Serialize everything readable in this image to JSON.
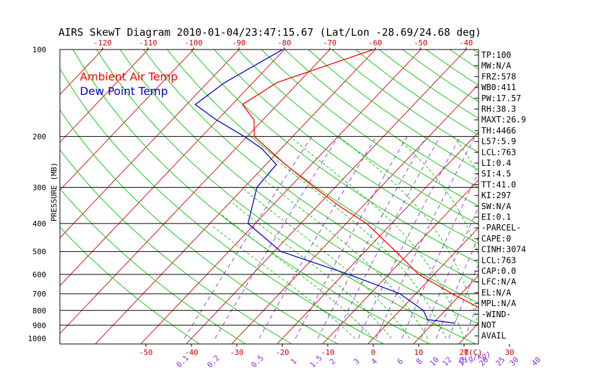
{
  "title": "AIRS SkewT Diagram 2010-01-04/23:47:15.67 (Lat/Lon -28.69/24.68 deg)",
  "colors": {
    "temp": "#ff0000",
    "dewpoint": "#0000c8",
    "isotherm": "#cc0000",
    "dry_adiabat": "#00c000",
    "moist_adiabat": "#00c000",
    "mixing_ratio": "#8a2be2",
    "isobar": "#000000",
    "tick_red": "#cc0000",
    "tick_purple": "#8a2be2"
  },
  "chart_data": {
    "type": "line",
    "title": "AIRS SkewT Diagram 2010-01-04/23:47:15.67 (Lat/Lon -28.69/24.68 deg)",
    "ylabel": "PRESSURE (MB)",
    "y_scale": "log",
    "ylim": [
      1000,
      100
    ],
    "y_ticks": [
      100,
      200,
      300,
      400,
      500,
      600,
      700,
      800,
      900,
      1000
    ],
    "y_tick_labels": [
      "100",
      "200",
      "300",
      "400",
      "500",
      "600",
      "700",
      "800",
      "900",
      "1000"
    ],
    "top_temp_ticks": [
      -120,
      -110,
      -100,
      -90,
      -80,
      -70,
      -60,
      -50,
      -40
    ],
    "bottom_temp_ticks": [
      -50,
      -40,
      -30,
      -20,
      -10,
      0,
      10,
      20,
      30
    ],
    "bottom_temp_unit": "T(C)",
    "mixing_ratio_ticks": [
      "0.1",
      "0.2",
      "0.5",
      "1",
      "1.5",
      "2",
      "3",
      "4",
      "6",
      "8",
      "10",
      "12",
      "15",
      "20",
      "25",
      "30",
      "40"
    ],
    "mixing_ratio_unit": "Q(g/kg)",
    "legend": [
      "Ambient Air Temp",
      "Dew Point Temp"
    ],
    "legend_position": "top-left",
    "series": [
      {
        "name": "Ambient Air Temp",
        "p": [
          885,
          870,
          800,
          700,
          600,
          500,
          400,
          350,
          300,
          250,
          200,
          175,
          155,
          130,
          100
        ],
        "t": [
          27.6,
          22.7,
          18.6,
          8.0,
          -3.4,
          -13.2,
          -25.5,
          -34.8,
          -44.6,
          -55.7,
          -68.4,
          -72.0,
          -77.7,
          -74.7,
          -60.4
        ]
      },
      {
        "name": "Dew Point Temp",
        "p": [
          885,
          860,
          800,
          700,
          600,
          500,
          400,
          300,
          250,
          220,
          200,
          175,
          155,
          130,
          100
        ],
        "t": [
          14.6,
          8.0,
          5.2,
          -3.5,
          -18.8,
          -38.5,
          -51.6,
          -57.2,
          -57.7,
          -64.3,
          -70.6,
          -80.3,
          -88.1,
          -86.2,
          -80.4
        ]
      }
    ],
    "side_index": [
      "TP:100",
      "MW:N/A",
      "FRZ:578",
      "WB0:411",
      "PW:17.57",
      "RH:38.3",
      "MAXT:26.9",
      "TH:4466",
      "L57:5.9",
      "LCL:763",
      "LI:0.4",
      "SI:4.5",
      "TT:41.0",
      "KI:297",
      "SW:N/A",
      "EI:0.1",
      "-PARCEL-",
      "CAPE:0",
      "CINH:3074",
      "LCL:763",
      "CAP:0.0",
      "LFC:N/A",
      "EL:N/A",
      "MPL:N/A",
      "-WIND-",
      "NOT",
      "AVAIL"
    ]
  }
}
